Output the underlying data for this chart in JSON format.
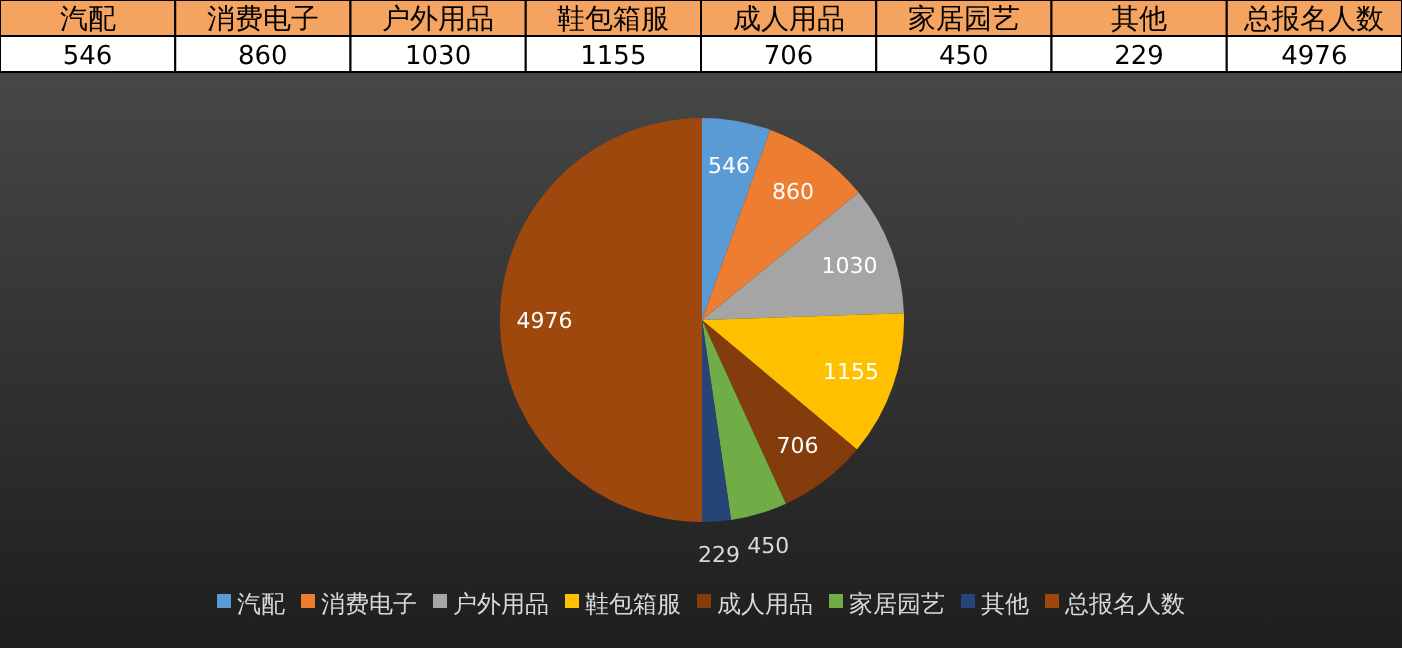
{
  "chart_data": [
    {
      "type": "other",
      "categories": [
        "汽配",
        "消费电子",
        "户外用品",
        "鞋包箱服",
        "成人用品",
        "家居园艺",
        "其他",
        "总报名人数"
      ],
      "values": [
        546,
        860,
        1030,
        1155,
        706,
        450,
        229,
        4976
      ],
      "data_labels": true
    },
    {
      "type": "pie",
      "categories": [
        "汽配",
        "消费电子",
        "户外用品",
        "鞋包箱服",
        "成人用品",
        "家居园艺",
        "其他",
        "总报名人数"
      ],
      "values": [
        546,
        860,
        1030,
        1155,
        706,
        450,
        229,
        4976
      ],
      "colors": [
        "#5b9bd5",
        "#ed7d31",
        "#a5a5a5",
        "#ffc000",
        "#843c0c",
        "#70ad47",
        "#264478",
        "#9e480e"
      ],
      "data_labels": true,
      "legend": "bottom"
    }
  ]
}
